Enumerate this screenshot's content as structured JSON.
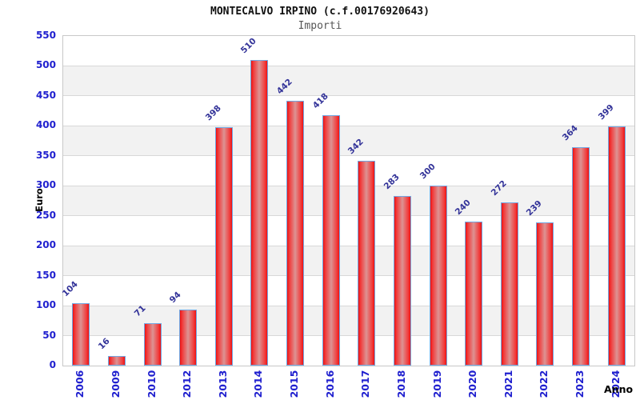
{
  "header": {
    "title": "MONTECALVO IRPINO (c.f.00176920643)",
    "subtitle": "Importi"
  },
  "chart_data": {
    "type": "bar",
    "title": "MONTECALVO IRPINO (c.f.00176920643)",
    "subtitle": "Importi",
    "xlabel": "Anno",
    "ylabel": "Euro",
    "categories": [
      "2006",
      "2009",
      "2010",
      "2012",
      "2013",
      "2014",
      "2015",
      "2016",
      "2017",
      "2018",
      "2019",
      "2020",
      "2021",
      "2022",
      "2023",
      "2024"
    ],
    "values": [
      104,
      16,
      71,
      94,
      398,
      510,
      442,
      418,
      342,
      283,
      300,
      240,
      272,
      239,
      364,
      399
    ],
    "ylim": [
      0,
      550
    ],
    "yticks": [
      0,
      50,
      100,
      150,
      200,
      250,
      300,
      350,
      400,
      450,
      500,
      550
    ],
    "grid": "horizontal-bands",
    "legend": "none",
    "colors": {
      "bar_fill_edge": "#eb1212",
      "bar_fill_center": "#dd9393",
      "bar_border": "#72a7e2",
      "tick_label": "#2020cf",
      "value_label": "#333399",
      "band": "#f2f2f2",
      "gridline": "#d8d8d8",
      "plot_border": "#c8c8c8",
      "axis_title": "#000000",
      "title_color": "#111111",
      "subtitle_color": "#565656"
    }
  }
}
